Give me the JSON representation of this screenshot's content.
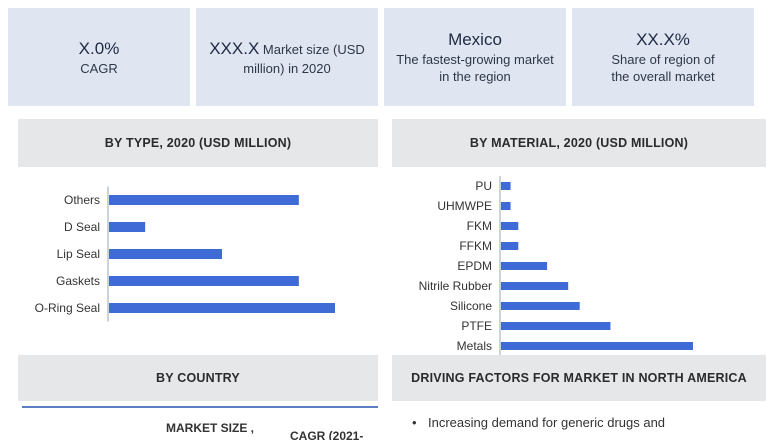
{
  "kpis": {
    "cagr_value": "X.0%",
    "cagr_label": "CAGR",
    "market_size_value": "XXX.X",
    "market_size_label_1": "Market size (USD",
    "market_size_label_2": "million) in 2020",
    "fastest_value": "Mexico",
    "fastest_label_1": "The fastest-growing market",
    "fastest_label_2": "in the region",
    "share_value": "XX.X%",
    "share_label_1": "Share of region of",
    "share_label_2": "the overall market"
  },
  "sections": {
    "by_type": "BY TYPE, 2020 (USD MILLION)",
    "by_material": "BY MATERIAL, 2020 (USD MILLION)",
    "by_country": "BY COUNTRY",
    "driving_factors": "DRIVING FACTORS FOR MARKET IN NORTH AMERICA"
  },
  "country_table": {
    "col_market_size": "MARKET SIZE ,",
    "col_cagr": "CAGR (2021-"
  },
  "driving_factors": [
    "Increasing demand for generic drugs and"
  ],
  "colors": {
    "bar": "#3f6bd6",
    "kpi_bg": "#dfe6f1",
    "header_bg": "#e6e7e9"
  },
  "chart_data": [
    {
      "type": "bar",
      "orientation": "horizontal",
      "title": "BY TYPE, 2020 (USD MILLION)",
      "categories": [
        "Others",
        "D Seal",
        "Lip Seal",
        "Gaskets",
        "O-Ring Seal"
      ],
      "values": [
        84,
        16,
        50,
        84,
        100
      ],
      "value_scale": "relative (no axis values printed)"
    },
    {
      "type": "bar",
      "orientation": "horizontal",
      "title": "BY MATERIAL, 2020 (USD MILLION)",
      "categories": [
        "PU",
        "UHMWPE",
        "FKM",
        "FFKM",
        "EPDM",
        "Nitrile Rubber",
        "Silicone",
        "PTFE",
        "Metals"
      ],
      "values": [
        5,
        5,
        9,
        9,
        24,
        35,
        41,
        57,
        100
      ],
      "value_scale": "relative (no axis values printed)"
    }
  ]
}
